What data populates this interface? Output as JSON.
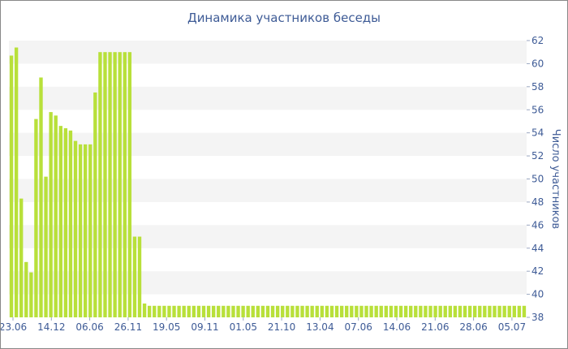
{
  "chart_data": {
    "type": "bar",
    "title": "Динамика участников беседы",
    "ylabel": "Число участников",
    "xlabel": "",
    "y_axis_position": "right",
    "ylim": [
      38,
      62
    ],
    "y_ticks": [
      38,
      40,
      42,
      44,
      46,
      48,
      50,
      52,
      54,
      56,
      58,
      60,
      62
    ],
    "x_tick_labels": [
      "23.06",
      "14.12",
      "06.06",
      "26.11",
      "19.05",
      "09.11",
      "01.05",
      "21.10",
      "13.04",
      "07.06",
      "14.06",
      "21.06",
      "28.06",
      "05.07"
    ],
    "grid": "horizontal bands",
    "bar_color": "#b8e03a",
    "band_color": "#f4f4f4",
    "text_color": "#3e5b96",
    "values": [
      60.7,
      61.4,
      48.3,
      42.8,
      41.9,
      55.2,
      58.8,
      50.2,
      55.8,
      55.5,
      54.6,
      54.4,
      54.2,
      53.3,
      53.0,
      53.0,
      53.0,
      57.5,
      61.0,
      61.0,
      61.0,
      61.0,
      61.0,
      61.0,
      61.0,
      45.0,
      45.0,
      39.2,
      39.0,
      39.0,
      39.0,
      39.0,
      39.0,
      39.0,
      39.0,
      39.0,
      39.0,
      39.0,
      39.0,
      39.0,
      39.0,
      39.0,
      39.0,
      39.0,
      39.0,
      39.0,
      39.0,
      39.0,
      39.0,
      39.0,
      39.0,
      39.0,
      39.0,
      39.0,
      39.0,
      39.0,
      39.0,
      39.0,
      39.0,
      39.0,
      39.0,
      39.0,
      39.0,
      39.0,
      39.0,
      39.0,
      39.0,
      39.0,
      39.0,
      39.0,
      39.0,
      39.0,
      39.0,
      39.0,
      39.0,
      39.0,
      39.0,
      39.0,
      39.0,
      39.0,
      39.0,
      39.0,
      39.0,
      39.0,
      39.0,
      39.0,
      39.0,
      39.0,
      39.0,
      39.0,
      39.0,
      39.0,
      39.0,
      39.0,
      39.0,
      39.0,
      39.0,
      39.0,
      39.0,
      39.0,
      39.0,
      39.0,
      39.0,
      39.0,
      39.0
    ]
  }
}
